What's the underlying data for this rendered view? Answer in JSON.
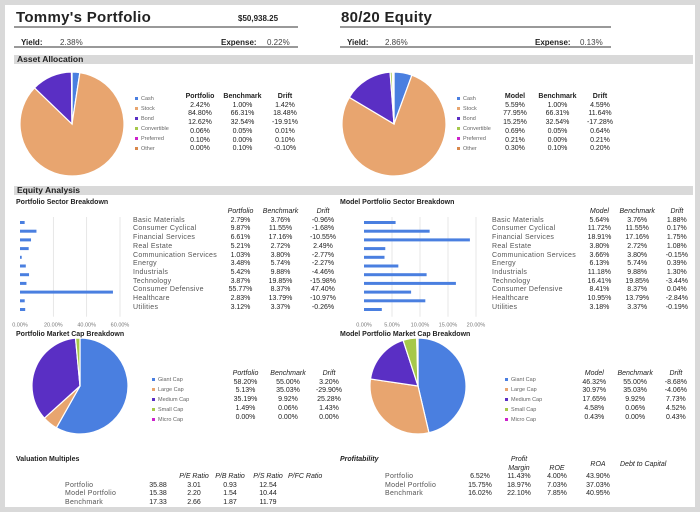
{
  "left": {
    "title": "Tommy's Portfolio",
    "value": "$50,938.25",
    "yield_label": "Yield:",
    "yield": "2.38%",
    "expense_label": "Expense:",
    "expense": "0.22%"
  },
  "right": {
    "title": "80/20 Equity",
    "yield_label": "Yield:",
    "yield": "2.86%",
    "expense_label": "Expense:",
    "expense": "0.13%"
  },
  "sections": {
    "asset_allocation": "Asset Allocation",
    "equity_analysis": "Equity Analysis"
  },
  "colors": {
    "Cash": "#4a7fe0",
    "Stock": "#e8a56f",
    "Bond": "#5a2fc4",
    "Convertible": "#a6c84a",
    "Preferred": "#cc22cc",
    "Other": "#d9884a",
    "Giant Cap": "#4a7fe0",
    "Large Cap": "#e8a56f",
    "Medium Cap": "#5a2fc4",
    "Small Cap": "#a6c84a",
    "Micro Cap": "#cc22cc",
    "bar": "#4a7fe0"
  },
  "asset_tables": [
    {
      "headers": [
        "Portfolio",
        "Benchmark",
        "Drift"
      ],
      "rows": [
        [
          "2.42%",
          "1.00%",
          "1.42%"
        ],
        [
          "84.80%",
          "66.31%",
          "18.48%"
        ],
        [
          "12.62%",
          "32.54%",
          "-19.91%"
        ],
        [
          "0.06%",
          "0.05%",
          "0.01%"
        ],
        [
          "0.10%",
          "0.00%",
          "0.10%"
        ],
        [
          "0.00%",
          "0.10%",
          "-0.10%"
        ]
      ]
    },
    {
      "headers": [
        "Model",
        "Benchmark",
        "Drift"
      ],
      "rows": [
        [
          "5.59%",
          "1.00%",
          "4.59%"
        ],
        [
          "77.95%",
          "66.31%",
          "11.64%"
        ],
        [
          "15.25%",
          "32.54%",
          "-17.28%"
        ],
        [
          "0.69%",
          "0.05%",
          "0.64%"
        ],
        [
          "0.21%",
          "0.00%",
          "0.21%"
        ],
        [
          "0.30%",
          "0.10%",
          "0.20%"
        ]
      ]
    }
  ],
  "sector_titles": [
    "Portfolio Sector Breakdown",
    "Model Portfolio Sector Breakdown"
  ],
  "sector_tables": [
    {
      "headers": [
        "Portfolio",
        "Benchmark",
        "Drift"
      ],
      "rows": [
        [
          "Basic Materials",
          "2.79%",
          "3.76%",
          "-0.96%"
        ],
        [
          "Consumer Cyclical",
          "9.87%",
          "11.55%",
          "-1.68%"
        ],
        [
          "Financial Services",
          "6.61%",
          "17.16%",
          "-10.55%"
        ],
        [
          "Real Estate",
          "5.21%",
          "2.72%",
          "2.49%"
        ],
        [
          "Communication Services",
          "1.03%",
          "3.80%",
          "-2.77%"
        ],
        [
          "Energy",
          "3.48%",
          "5.74%",
          "-2.27%"
        ],
        [
          "Industrials",
          "5.42%",
          "9.88%",
          "-4.46%"
        ],
        [
          "Technology",
          "3.87%",
          "19.85%",
          "-15.98%"
        ],
        [
          "Consumer Defensive",
          "55.77%",
          "8.37%",
          "47.40%"
        ],
        [
          "Healthcare",
          "2.83%",
          "13.79%",
          "-10.97%"
        ],
        [
          "Utilities",
          "3.12%",
          "3.37%",
          "-0.26%"
        ]
      ]
    },
    {
      "headers": [
        "Model",
        "Benchmark",
        "Drift"
      ],
      "rows": [
        [
          "Basic Materials",
          "5.64%",
          "3.76%",
          "1.88%"
        ],
        [
          "Consumer Cyclical",
          "11.72%",
          "11.55%",
          "0.17%"
        ],
        [
          "Financial Services",
          "18.91%",
          "17.16%",
          "1.75%"
        ],
        [
          "Real Estate",
          "3.80%",
          "2.72%",
          "1.08%"
        ],
        [
          "Communication Services",
          "3.66%",
          "3.80%",
          "-0.15%"
        ],
        [
          "Energy",
          "6.13%",
          "5.74%",
          "0.39%"
        ],
        [
          "Industrials",
          "11.18%",
          "9.88%",
          "1.30%"
        ],
        [
          "Technology",
          "16.41%",
          "19.85%",
          "-3.44%"
        ],
        [
          "Consumer Defensive",
          "8.41%",
          "8.37%",
          "0.04%"
        ],
        [
          "Healthcare",
          "10.95%",
          "13.79%",
          "-2.84%"
        ],
        [
          "Utilities",
          "3.18%",
          "3.37%",
          "-0.19%"
        ]
      ]
    }
  ],
  "cap_titles": [
    "Portfolio Market Cap Breakdown",
    "Model Portfolio Market Cap Breakdown"
  ],
  "cap_tables": [
    {
      "headers": [
        "Portfolio",
        "Benchmark",
        "Drift"
      ],
      "rows": [
        [
          "58.20%",
          "55.00%",
          "3.20%"
        ],
        [
          "5.13%",
          "35.03%",
          "-29.90%"
        ],
        [
          "35.19%",
          "9.92%",
          "25.28%"
        ],
        [
          "1.49%",
          "0.06%",
          "1.43%"
        ],
        [
          "0.00%",
          "0.00%",
          "0.00%"
        ]
      ]
    },
    {
      "headers": [
        "Model",
        "Benchmark",
        "Drift"
      ],
      "rows": [
        [
          "46.32%",
          "55.00%",
          "-8.68%"
        ],
        [
          "30.97%",
          "35.03%",
          "-4.06%"
        ],
        [
          "17.65%",
          "9.92%",
          "7.73%"
        ],
        [
          "4.58%",
          "0.06%",
          "4.52%"
        ],
        [
          "0.43%",
          "0.00%",
          "0.43%"
        ]
      ]
    }
  ],
  "valuation": {
    "title": "Valuation Multiples",
    "headers": [
      "",
      "P/E Ratio",
      "P/B Ratio",
      "P/S Ratio",
      "P/FC Ratio"
    ],
    "rows": [
      [
        "Portfolio",
        "35.88",
        "3.01",
        "0.93",
        "12.54"
      ],
      [
        "Model Portfolio",
        "15.38",
        "2.20",
        "1.54",
        "10.44"
      ],
      [
        "Benchmark",
        "17.33",
        "2.66",
        "1.87",
        "11.79"
      ]
    ]
  },
  "profitability": {
    "title": "Profitability",
    "headers": [
      "",
      "Profit Margin",
      "ROE",
      "ROA",
      "Debt to Capital"
    ],
    "rows": [
      [
        "Portfolio",
        "6.52%",
        "11.43%",
        "4.00%",
        "43.90%"
      ],
      [
        "Model Portfolio",
        "15.75%",
        "18.97%",
        "7.03%",
        "37.03%"
      ],
      [
        "Benchmark",
        "16.02%",
        "22.10%",
        "7.85%",
        "40.95%"
      ]
    ]
  },
  "chart_data": [
    {
      "type": "pie",
      "id": "asset-left",
      "categories": [
        "Cash",
        "Stock",
        "Bond",
        "Convertible",
        "Preferred",
        "Other"
      ],
      "values": [
        2.42,
        84.8,
        12.62,
        0.06,
        0.1,
        0.0
      ]
    },
    {
      "type": "pie",
      "id": "asset-right",
      "categories": [
        "Cash",
        "Stock",
        "Bond",
        "Convertible",
        "Preferred",
        "Other"
      ],
      "values": [
        5.59,
        77.95,
        15.25,
        0.69,
        0.21,
        0.3
      ]
    },
    {
      "type": "bar",
      "id": "sector-left",
      "orientation": "horizontal",
      "categories": [
        "Basic Materials",
        "Consumer Cyclical",
        "Financial Services",
        "Real Estate",
        "Communication Services",
        "Energy",
        "Industrials",
        "Technology",
        "Consumer Defensive",
        "Healthcare",
        "Utilities"
      ],
      "values": [
        2.79,
        9.87,
        6.61,
        5.21,
        1.03,
        3.48,
        5.42,
        3.87,
        55.77,
        2.83,
        3.12
      ],
      "xlim": [
        0,
        60
      ],
      "ticks": [
        "0.00%",
        "20.00%",
        "40.00%",
        "60.00%"
      ],
      "grid": true
    },
    {
      "type": "bar",
      "id": "sector-right",
      "orientation": "horizontal",
      "categories": [
        "Basic Materials",
        "Consumer Cyclical",
        "Financial Services",
        "Real Estate",
        "Communication Services",
        "Energy",
        "Industrials",
        "Technology",
        "Consumer Defensive",
        "Healthcare",
        "Utilities"
      ],
      "values": [
        5.64,
        11.72,
        18.91,
        3.8,
        3.66,
        6.13,
        11.18,
        16.41,
        8.41,
        10.95,
        3.18
      ],
      "xlim": [
        0,
        20
      ],
      "ticks": [
        "0.00%",
        "5.00%",
        "10.00%",
        "15.00%",
        "20.00%"
      ],
      "grid": true
    },
    {
      "type": "pie",
      "id": "cap-left",
      "categories": [
        "Giant Cap",
        "Large Cap",
        "Medium Cap",
        "Small Cap",
        "Micro Cap"
      ],
      "values": [
        58.2,
        5.13,
        35.19,
        1.49,
        0.0
      ]
    },
    {
      "type": "pie",
      "id": "cap-right",
      "categories": [
        "Giant Cap",
        "Large Cap",
        "Medium Cap",
        "Small Cap",
        "Micro Cap"
      ],
      "values": [
        46.32,
        30.97,
        17.65,
        4.58,
        0.43
      ]
    }
  ]
}
